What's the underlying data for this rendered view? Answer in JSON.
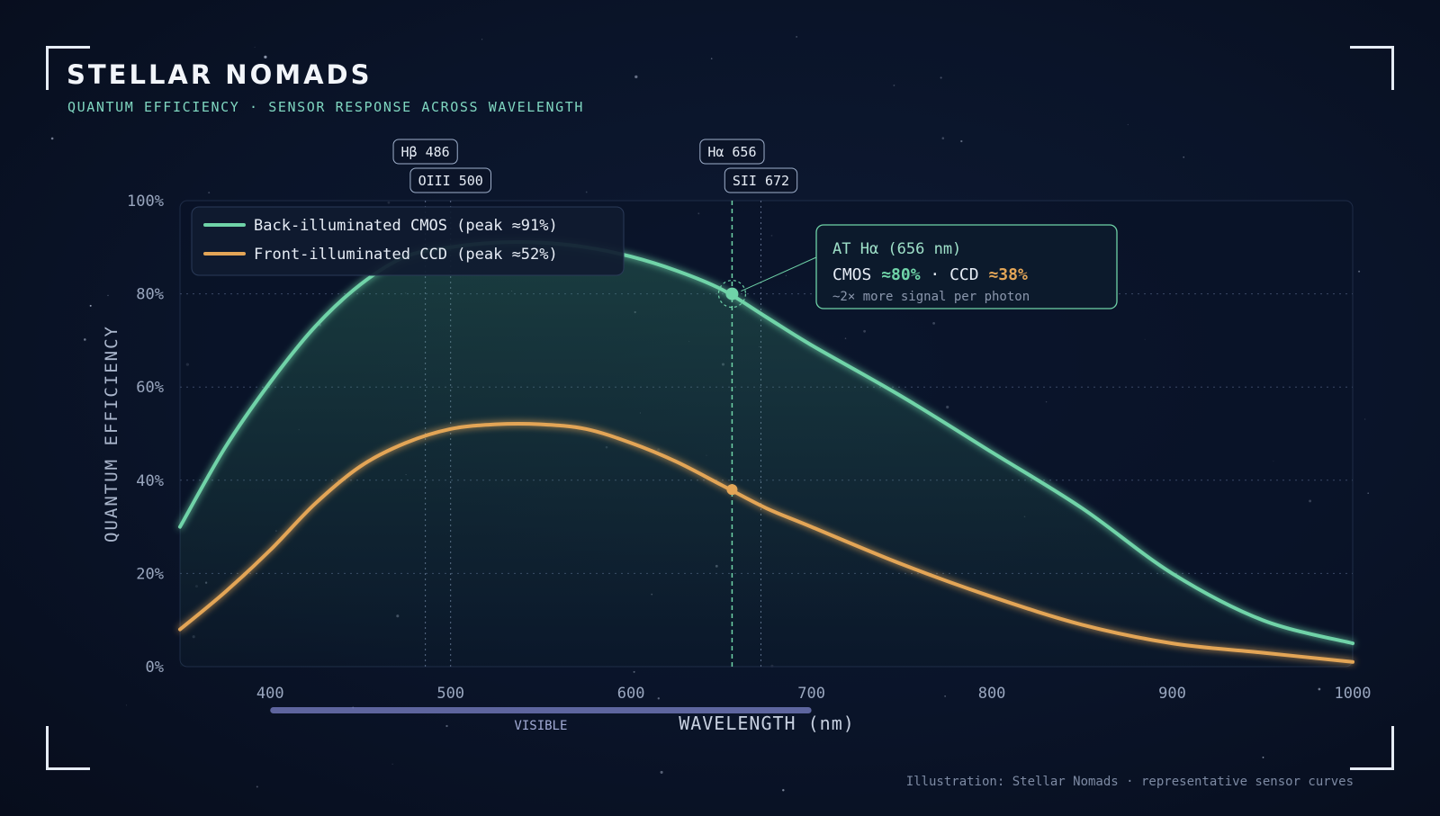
{
  "header": {
    "title": "STELLAR NOMADS",
    "subtitle": "QUANTUM EFFICIENCY · SENSOR RESPONSE ACROSS WAVELENGTH"
  },
  "footer": {
    "credit": "Illustration: Stellar Nomads · representative sensor curves"
  },
  "colors": {
    "cmos": "#6fd3a8",
    "ccd": "#e3a557",
    "accent": "#7fd6c0",
    "band": "#7b82c7"
  },
  "chart_data": {
    "type": "line",
    "xlabel": "WAVELENGTH (nm)",
    "ylabel": "QUANTUM EFFICIENCY",
    "xlim": [
      350,
      1000
    ],
    "ylim": [
      0,
      100
    ],
    "x_ticks": [
      400,
      500,
      600,
      700,
      800,
      900,
      1000
    ],
    "y_ticks": [
      0,
      20,
      40,
      60,
      80,
      100
    ],
    "y_tick_labels": [
      "0%",
      "20%",
      "40%",
      "60%",
      "80%",
      "100%"
    ],
    "grid": true,
    "legend_position": "top-left",
    "series": [
      {
        "name": "Back-illuminated CMOS (peak ≈91%)",
        "color": "#6fd3a8",
        "x": [
          350,
          375,
          400,
          425,
          450,
          475,
          500,
          525,
          550,
          575,
          600,
          625,
          650,
          675,
          700,
          750,
          800,
          850,
          900,
          950,
          1000
        ],
        "y": [
          30,
          47,
          61,
          73,
          82,
          88,
          90,
          91,
          91,
          90,
          88,
          85,
          81,
          75,
          69,
          58,
          46,
          34,
          20,
          10,
          5
        ]
      },
      {
        "name": "Front-illuminated CCD (peak ≈52%)",
        "color": "#e3a557",
        "x": [
          350,
          375,
          400,
          425,
          450,
          475,
          500,
          525,
          550,
          575,
          600,
          625,
          650,
          675,
          700,
          750,
          800,
          850,
          900,
          950,
          1000
        ],
        "y": [
          8,
          16,
          25,
          35,
          43,
          48,
          51,
          52,
          52,
          51,
          48,
          44,
          39,
          34,
          30,
          22,
          15,
          9,
          5,
          3,
          1
        ]
      }
    ],
    "emission_lines": [
      {
        "label": "Hβ 486",
        "x": 486
      },
      {
        "label": "OIII 500",
        "x": 500
      },
      {
        "label": "Hα 656",
        "x": 656
      },
      {
        "label": "SII 672",
        "x": 672
      }
    ],
    "highlight": {
      "x": 656,
      "cmos_y": 80,
      "ccd_y": 38,
      "title": "AT Hα (656 nm)",
      "cmos_label": "CMOS",
      "cmos_value": "≈80%",
      "separator": "·",
      "ccd_label": "CCD",
      "ccd_value": "≈38%",
      "note": "~2× more signal per photon"
    },
    "visible_band": {
      "label": "VISIBLE",
      "range": [
        400,
        700
      ]
    }
  }
}
